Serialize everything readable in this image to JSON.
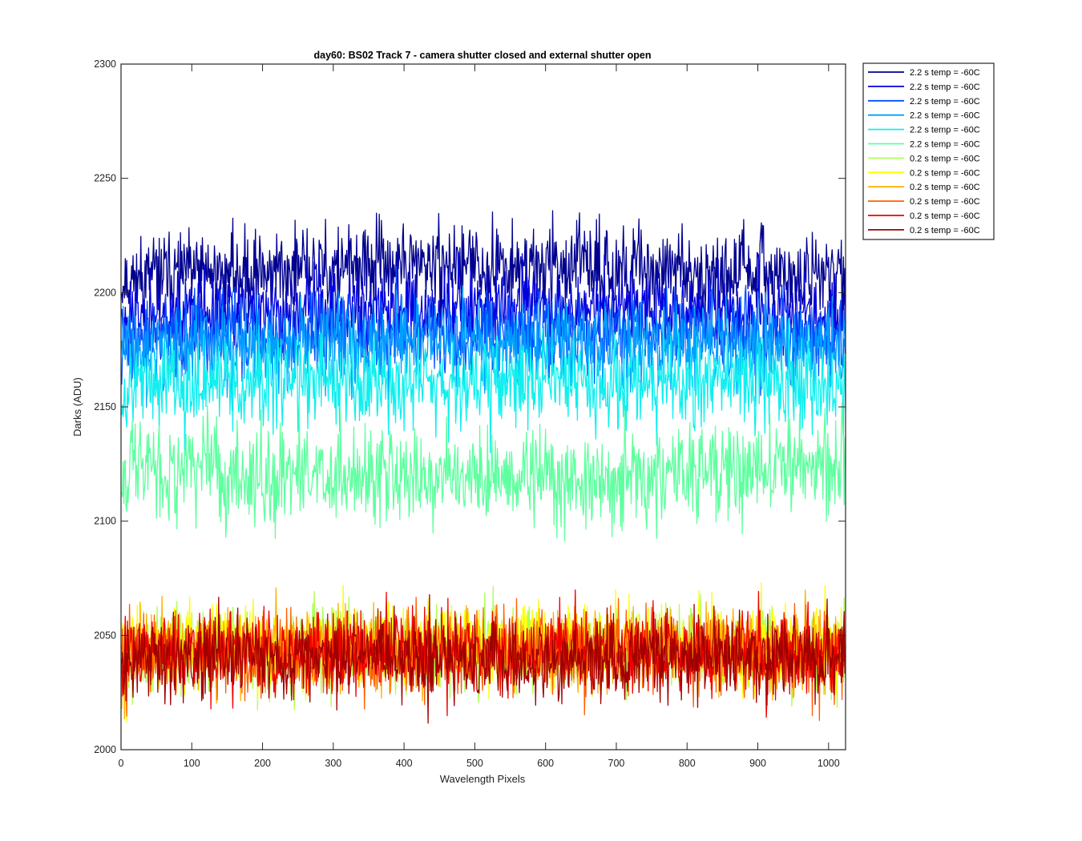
{
  "chart_data": {
    "type": "line",
    "title": "day60: BS02  Track 7 - camera shutter closed and external shutter open",
    "xlabel": "Wavelength Pixels",
    "ylabel": "Darks (ADU)",
    "xlim": [
      0,
      1024
    ],
    "ylim": [
      2000,
      2300
    ],
    "xticks": [
      0,
      100,
      200,
      300,
      400,
      500,
      600,
      700,
      800,
      900,
      1000
    ],
    "yticks": [
      2000,
      2050,
      2100,
      2150,
      2200,
      2250,
      2300
    ],
    "grid": false,
    "legend_position": "outside-top-right",
    "points_per_series": 1024,
    "series": [
      {
        "name": "2.2 s temp = -60C",
        "color": "#00008f",
        "mean": 2206,
        "noise": 9,
        "hump": 6,
        "seed": 11
      },
      {
        "name": "2.2 s temp = -60C",
        "color": "#0000df",
        "mean": 2190,
        "noise": 9,
        "hump": 4,
        "seed": 23
      },
      {
        "name": "2.2 s temp = -60C",
        "color": "#0050ff",
        "mean": 2180,
        "noise": 9,
        "hump": 3,
        "seed": 37
      },
      {
        "name": "2.2 s temp = -60C",
        "color": "#00a0ff",
        "mean": 2175,
        "noise": 9,
        "hump": 3,
        "seed": 41
      },
      {
        "name": "2.2 s temp = -60C",
        "color": "#10efef",
        "mean": 2160,
        "noise": 10,
        "hump": 2,
        "seed": 53
      },
      {
        "name": "2.2 s temp = -60C",
        "color": "#60ffa0",
        "mean": 2125,
        "noise": 11,
        "hump": -6,
        "seed": 67
      },
      {
        "name": "0.2 s temp = -60C",
        "color": "#afff50",
        "mean": 2043,
        "noise": 9,
        "hump": 2,
        "seed": 71
      },
      {
        "name": "0.2 s temp = -60C",
        "color": "#ffff00",
        "mean": 2045,
        "noise": 9,
        "hump": 2,
        "seed": 83
      },
      {
        "name": "0.2 s temp = -60C",
        "color": "#ffaf00",
        "mean": 2043,
        "noise": 9,
        "hump": 1,
        "seed": 97
      },
      {
        "name": "0.2 s temp = -60C",
        "color": "#ff5f00",
        "mean": 2042,
        "noise": 9,
        "hump": 1,
        "seed": 101
      },
      {
        "name": "0.2 s temp = -60C",
        "color": "#ef0000",
        "mean": 2043,
        "noise": 9,
        "hump": 0,
        "seed": 113
      },
      {
        "name": "0.2 s temp = -60C",
        "color": "#9f0000",
        "mean": 2040,
        "noise": 9,
        "hump": 0,
        "seed": 127
      }
    ]
  }
}
